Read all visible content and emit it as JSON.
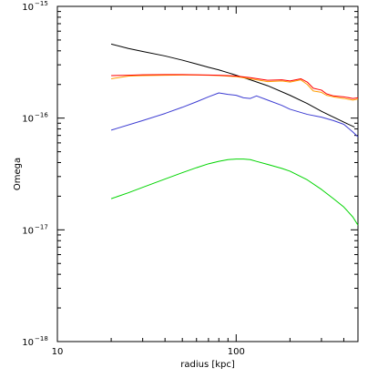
{
  "chart_data": {
    "type": "line",
    "title": "",
    "xlabel": "radius [kpc]",
    "ylabel": "Omega",
    "xscale": "log",
    "yscale": "log",
    "xlim": [
      10,
      480
    ],
    "ylim": [
      1e-18,
      1e-15
    ],
    "grid": false,
    "legend": "none",
    "xticks": [
      {
        "value": 10,
        "label": "10"
      },
      {
        "value": 100,
        "label": "100"
      }
    ],
    "yticks": [
      {
        "value": 1e-18,
        "base": "10",
        "exp": "−18"
      },
      {
        "value": 1e-17,
        "base": "10",
        "exp": "−17"
      },
      {
        "value": 1e-16,
        "base": "10",
        "exp": "−16"
      },
      {
        "value": 1e-15,
        "base": "10",
        "exp": "−15"
      }
    ],
    "series": [
      {
        "color": "#000000",
        "x": [
          20,
          25,
          30,
          40,
          50,
          60,
          70,
          80,
          90,
          100,
          120,
          150,
          200,
          250,
          300,
          350,
          400,
          460
        ],
        "y": [
          4.6e-16,
          4.2e-16,
          3.95e-16,
          3.6e-16,
          3.3e-16,
          3.05e-16,
          2.85e-16,
          2.7e-16,
          2.55e-16,
          2.42e-16,
          2.2e-16,
          1.95e-16,
          1.6e-16,
          1.35e-16,
          1.15e-16,
          1.02e-16,
          9.2e-17,
          8.3e-17
        ]
      },
      {
        "color": "#ff9d00",
        "x": [
          20,
          25,
          30,
          40,
          50,
          60,
          70,
          80,
          100,
          120,
          150,
          180,
          200,
          230,
          250,
          270,
          300,
          320,
          350,
          400,
          450,
          480
        ],
        "y": [
          2.25e-16,
          2.38e-16,
          2.4e-16,
          2.42e-16,
          2.43e-16,
          2.43e-16,
          2.42e-16,
          2.4e-16,
          2.35e-16,
          2.25e-16,
          2.12e-16,
          2.15e-16,
          2.1e-16,
          2.2e-16,
          2e-16,
          1.75e-16,
          1.7e-16,
          1.6e-16,
          1.55e-16,
          1.5e-16,
          1.45e-16,
          1.48e-16
        ]
      },
      {
        "color": "#ff0000",
        "x": [
          20,
          25,
          30,
          40,
          50,
          60,
          70,
          80,
          100,
          120,
          150,
          180,
          200,
          230,
          250,
          270,
          300,
          320,
          350,
          400,
          450,
          480
        ],
        "y": [
          2.4e-16,
          2.42e-16,
          2.44e-16,
          2.45e-16,
          2.45e-16,
          2.44e-16,
          2.43e-16,
          2.42e-16,
          2.38e-16,
          2.3e-16,
          2.18e-16,
          2.2e-16,
          2.15e-16,
          2.25e-16,
          2.1e-16,
          1.85e-16,
          1.78e-16,
          1.65e-16,
          1.58e-16,
          1.55e-16,
          1.5e-16,
          1.52e-16
        ]
      },
      {
        "color": "#3c3cd2",
        "x": [
          20,
          30,
          40,
          50,
          60,
          70,
          80,
          90,
          100,
          110,
          120,
          130,
          150,
          180,
          200,
          250,
          300,
          350,
          400,
          450,
          480
        ],
        "y": [
          7.8e-17,
          9.5e-17,
          1.1e-16,
          1.25e-16,
          1.4e-16,
          1.55e-16,
          1.68e-16,
          1.63e-16,
          1.6e-16,
          1.52e-16,
          1.5e-16,
          1.58e-16,
          1.45e-16,
          1.3e-16,
          1.2e-16,
          1.08e-16,
          1.02e-16,
          9.5e-17,
          8.8e-17,
          7.5e-17,
          6.8e-17
        ]
      },
      {
        "color": "#00d400",
        "x": [
          20,
          25,
          30,
          40,
          50,
          60,
          70,
          80,
          90,
          100,
          110,
          120,
          130,
          150,
          180,
          200,
          250,
          300,
          350,
          400,
          450,
          480
        ],
        "y": [
          1.9e-17,
          2.15e-17,
          2.4e-17,
          2.85e-17,
          3.25e-17,
          3.6e-17,
          3.9e-17,
          4.1e-17,
          4.25e-17,
          4.3e-17,
          4.3e-17,
          4.25e-17,
          4.1e-17,
          3.85e-17,
          3.55e-17,
          3.35e-17,
          2.8e-17,
          2.3e-17,
          1.9e-17,
          1.6e-17,
          1.3e-17,
          1.1e-17
        ]
      }
    ]
  }
}
